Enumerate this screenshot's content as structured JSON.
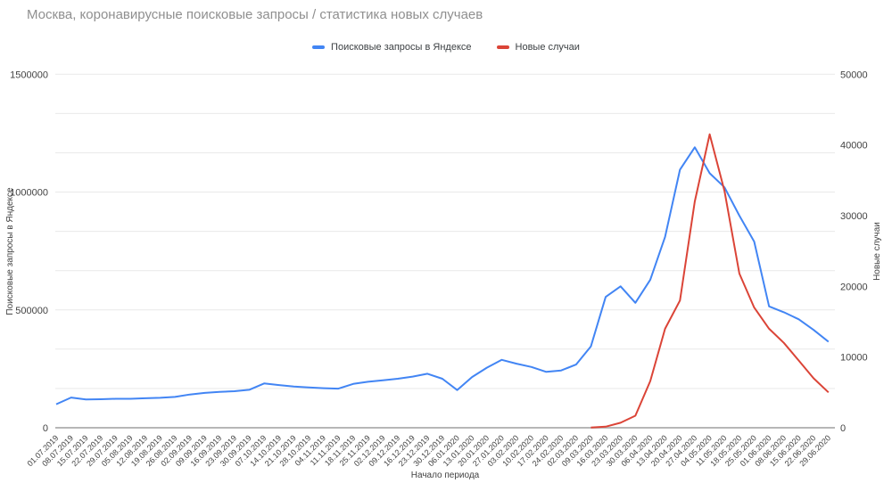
{
  "title": "Москва, коронавирусные поисковые запросы / статистика новых случаев",
  "legend": [
    {
      "label": "Поисковые запросы в Яндексе",
      "color": "#4285f4"
    },
    {
      "label": "Новые случаи",
      "color": "#db4437"
    }
  ],
  "chart_data": {
    "type": "line",
    "title": "Москва, коронавирусные поисковые запросы / статистика новых случаев",
    "x_title": "Начало периода",
    "legend_position": "top",
    "grid": {
      "horizontal": true,
      "intervals": 9
    },
    "colors": {
      "grid": "#e9e9e9",
      "axis": "#b7b7b7",
      "title_text": "#8f8f8f",
      "label_text": "#424242"
    },
    "y_left": {
      "title": "Поисковые запросы в Яндексе",
      "range": [
        0,
        1500000
      ],
      "ticks": [
        0,
        500000,
        1000000,
        1500000
      ]
    },
    "y_right": {
      "title": "Новые случаи",
      "range": [
        0,
        50000
      ],
      "ticks": [
        0,
        10000,
        20000,
        30000,
        40000,
        50000
      ]
    },
    "categories": [
      "01.07.2019",
      "08.07.2019",
      "15.07.2019",
      "22.07.2019",
      "29.07.2019",
      "05.08.2019",
      "12.08.2019",
      "19.08.2019",
      "26.08.2019",
      "02.09.2019",
      "09.09.2019",
      "16.09.2019",
      "23.09.2019",
      "30.09.2019",
      "07.10.2019",
      "14.10.2019",
      "21.10.2019",
      "28.10.2019",
      "04.11.2019",
      "11.11.2019",
      "18.11.2019",
      "25.11.2019",
      "02.12.2019",
      "09.12.2019",
      "16.12.2019",
      "23.12.2019",
      "30.12.2019",
      "06.01.2020",
      "13.01.2020",
      "20.01.2020",
      "27.01.2020",
      "03.02.2020",
      "10.02.2020",
      "17.02.2020",
      "24.02.2020",
      "02.03.2020",
      "09.03.2020",
      "16.03.2020",
      "23.03.2020",
      "30.03.2020",
      "06.04.2020",
      "13.04.2020",
      "20.04.2020",
      "27.04.2020",
      "04.05.2020",
      "11.05.2020",
      "18.05.2020",
      "25.05.2020",
      "01.06.2020",
      "08.06.2020",
      "15.06.2020",
      "22.06.2020",
      "29.06.2020"
    ],
    "series": [
      {
        "name": "Поисковые запросы в Яндексе",
        "axis": "left",
        "color": "#4285f4",
        "values": [
          100000,
          128000,
          120000,
          121000,
          123000,
          123000,
          125000,
          127000,
          131000,
          141000,
          148000,
          152000,
          155000,
          161000,
          188000,
          181000,
          175000,
          171000,
          168000,
          166000,
          186000,
          195000,
          201000,
          208000,
          217000,
          229000,
          208000,
          160000,
          215000,
          255000,
          288000,
          272000,
          258000,
          237000,
          243000,
          268000,
          345000,
          555000,
          600000,
          530000,
          628000,
          810000,
          1095000,
          1190000,
          1080000,
          1020000,
          900000,
          790000,
          515000,
          490000,
          460000,
          415000,
          365000
        ]
      },
      {
        "name": "Новые случаи",
        "axis": "right",
        "color": "#db4437",
        "values": [
          null,
          null,
          null,
          null,
          null,
          null,
          null,
          null,
          null,
          null,
          null,
          null,
          null,
          null,
          null,
          null,
          null,
          null,
          null,
          null,
          null,
          null,
          null,
          null,
          null,
          null,
          null,
          null,
          null,
          null,
          null,
          null,
          null,
          null,
          null,
          null,
          30,
          150,
          700,
          1700,
          6600,
          14000,
          18000,
          32000,
          41500,
          33500,
          21800,
          17000,
          14000,
          12000,
          9500,
          7000,
          5000
        ]
      }
    ]
  }
}
